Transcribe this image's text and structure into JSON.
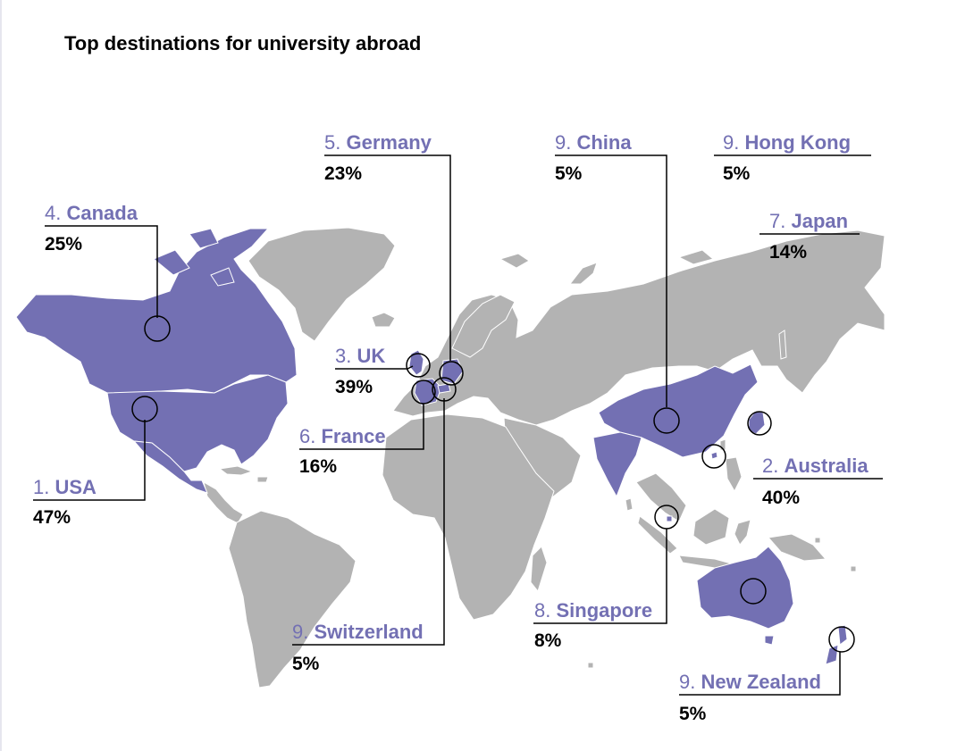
{
  "title": "Top destinations for university abroad",
  "colors": {
    "land": "#b3b3b3",
    "highlight": "#7370b3",
    "label": "#7370b3",
    "leader": "#000000"
  },
  "destinations": [
    {
      "rank": "1.",
      "name": "USA",
      "share": "47%"
    },
    {
      "rank": "2.",
      "name": "Australia",
      "share": "40%"
    },
    {
      "rank": "3.",
      "name": "UK",
      "share": "39%"
    },
    {
      "rank": "4.",
      "name": "Canada",
      "share": "25%"
    },
    {
      "rank": "5.",
      "name": "Germany",
      "share": "23%"
    },
    {
      "rank": "6.",
      "name": "France",
      "share": "16%"
    },
    {
      "rank": "7.",
      "name": "Japan",
      "share": "14%"
    },
    {
      "rank": "8.",
      "name": "Singapore",
      "share": "8%"
    },
    {
      "rank": "9.",
      "name": "Switzerland",
      "share": "5%"
    },
    {
      "rank": "9.",
      "name": "China",
      "share": "5%"
    },
    {
      "rank": "9.",
      "name": "Hong Kong",
      "share": "5%"
    },
    {
      "rank": "9.",
      "name": "New Zealand",
      "share": "5%"
    }
  ]
}
